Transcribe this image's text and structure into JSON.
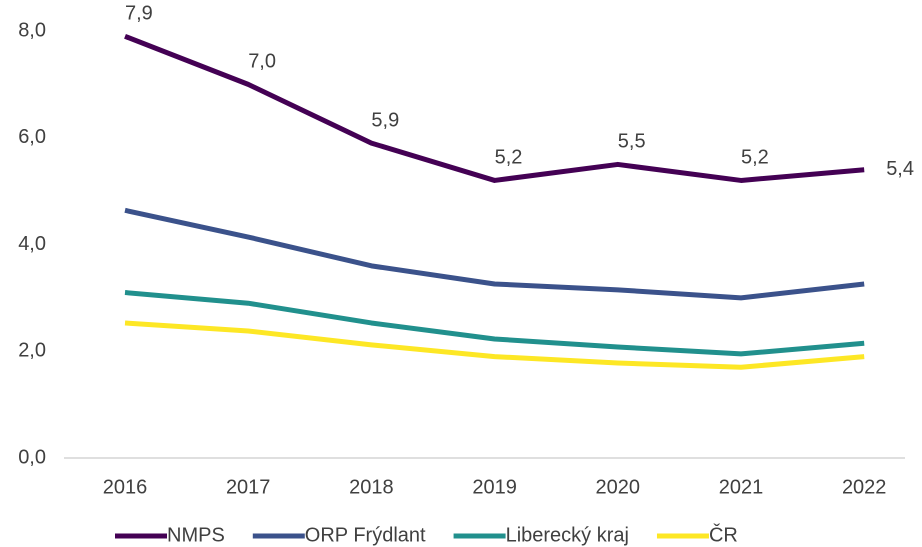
{
  "chart_data": {
    "type": "line",
    "categories": [
      "2016",
      "2017",
      "2018",
      "2019",
      "2020",
      "2021",
      "2022"
    ],
    "series": [
      {
        "name": "NMPS",
        "color": "#440154",
        "values": [
          7.9,
          7.0,
          5.9,
          5.2,
          5.5,
          5.2,
          5.4
        ],
        "value_labels": [
          "7,9",
          "7,0",
          "5,9",
          "5,2",
          "5,5",
          "5,2",
          "5,4"
        ]
      },
      {
        "name": "ORP Frýdlant",
        "color": "#3b528b",
        "values": [
          4.64,
          4.14,
          3.6,
          3.26,
          3.15,
          3.0,
          3.26
        ]
      },
      {
        "name": "Liberecký kraj",
        "color": "#21908d",
        "values": [
          3.1,
          2.9,
          2.53,
          2.23,
          2.08,
          1.95,
          2.15
        ]
      },
      {
        "name": "ČR",
        "color": "#fde725",
        "values": [
          2.53,
          2.38,
          2.12,
          1.9,
          1.78,
          1.7,
          1.9
        ]
      }
    ],
    "ylim": [
      0,
      8
    ],
    "yticks": [
      {
        "value": 0,
        "label": "0,0"
      },
      {
        "value": 2,
        "label": "2,0"
      },
      {
        "value": 4,
        "label": "4,0"
      },
      {
        "value": 6,
        "label": "6,0"
      },
      {
        "value": 8,
        "label": "8,0"
      }
    ],
    "grid": false,
    "legend": "bottom"
  }
}
